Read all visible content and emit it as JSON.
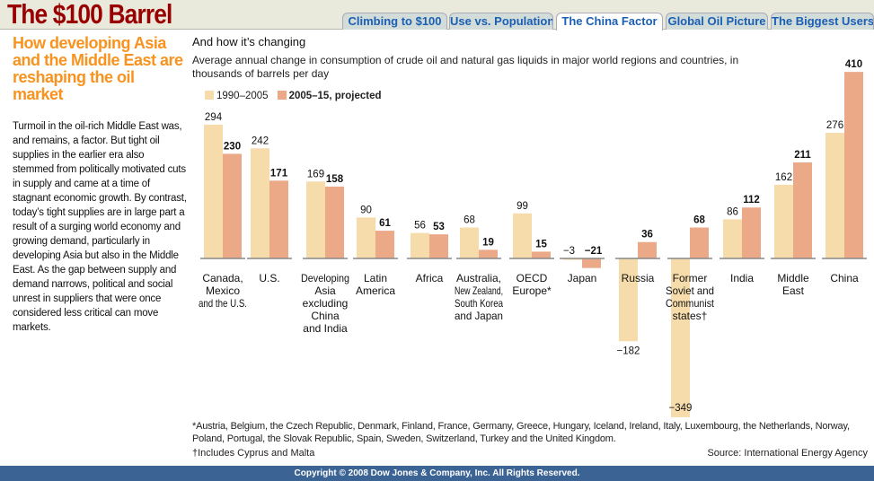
{
  "header": {
    "title": "The $100 Barrel",
    "tabs": [
      {
        "label": "Climbing to $100"
      },
      {
        "label": "Use vs. Population"
      },
      {
        "label": "The China Factor",
        "active": true
      },
      {
        "label": "Global Oil Picture"
      },
      {
        "label": "The Biggest Users"
      }
    ]
  },
  "left": {
    "heading": "How developing Asia and the Middle East are reshaping the oil market",
    "body": "Turmoil in the oil-rich Middle East was, and remains, a factor. But tight oil supplies in the earlier era also stemmed from politically motivated cuts in supply and came at a time of stagnant economic growth. By contrast, today’s tight supplies are in large part a result of a surging world economy and growing demand, particularly in developing Asia but also in the Middle East. As the gap between supply and demand narrows, political and social unrest in suppliers that were once considered less critical can move markets."
  },
  "chart_data": {
    "type": "bar",
    "title": "And how it’s changing",
    "subtitle": "Average annual change in consumption of crude oil and natural gas liquids in major world regions and countries, in thousands of barrels per day",
    "categories": [
      "Canada, Mexico and the U.S.",
      "U.S.",
      "Developing Asia excluding China and India",
      "Latin America",
      "Africa",
      "Australia, New Zealand, South Korea and Japan",
      "OECD Europe*",
      "Japan",
      "Russia",
      "Former Soviet and Communist states†",
      "India",
      "Middle East",
      "China"
    ],
    "series": [
      {
        "name": "1990–2005",
        "color": "#f5dcaa",
        "values": [
          294,
          242,
          169,
          90,
          56,
          68,
          99,
          -3,
          -182,
          -349,
          86,
          162,
          276
        ]
      },
      {
        "name": "2005–15, projected",
        "color": "#eca988",
        "values": [
          230,
          171,
          158,
          61,
          53,
          19,
          15,
          -21,
          36,
          68,
          112,
          211,
          410
        ]
      }
    ],
    "ylim": [
      -349,
      410
    ],
    "grid": false,
    "legend": "top-left"
  },
  "footnotes": {
    "asterisk": "*Austria, Belgium, the Czech Republic, Denmark, Finland, France, Germany, Greece, Hungary, Iceland, Ireland, Italy, Luxembourg, the Netherlands, Norway, Poland, Portugal, the Slovak Republic, Spain, Sweden, Switzerland, Turkey and the United Kingdom.",
    "dagger": "†Includes Cyprus and Malta",
    "source": "Source: International Energy Agency"
  },
  "footer": "Copyright © 2008 Dow Jones & Company, Inc. All Rights Reserved."
}
